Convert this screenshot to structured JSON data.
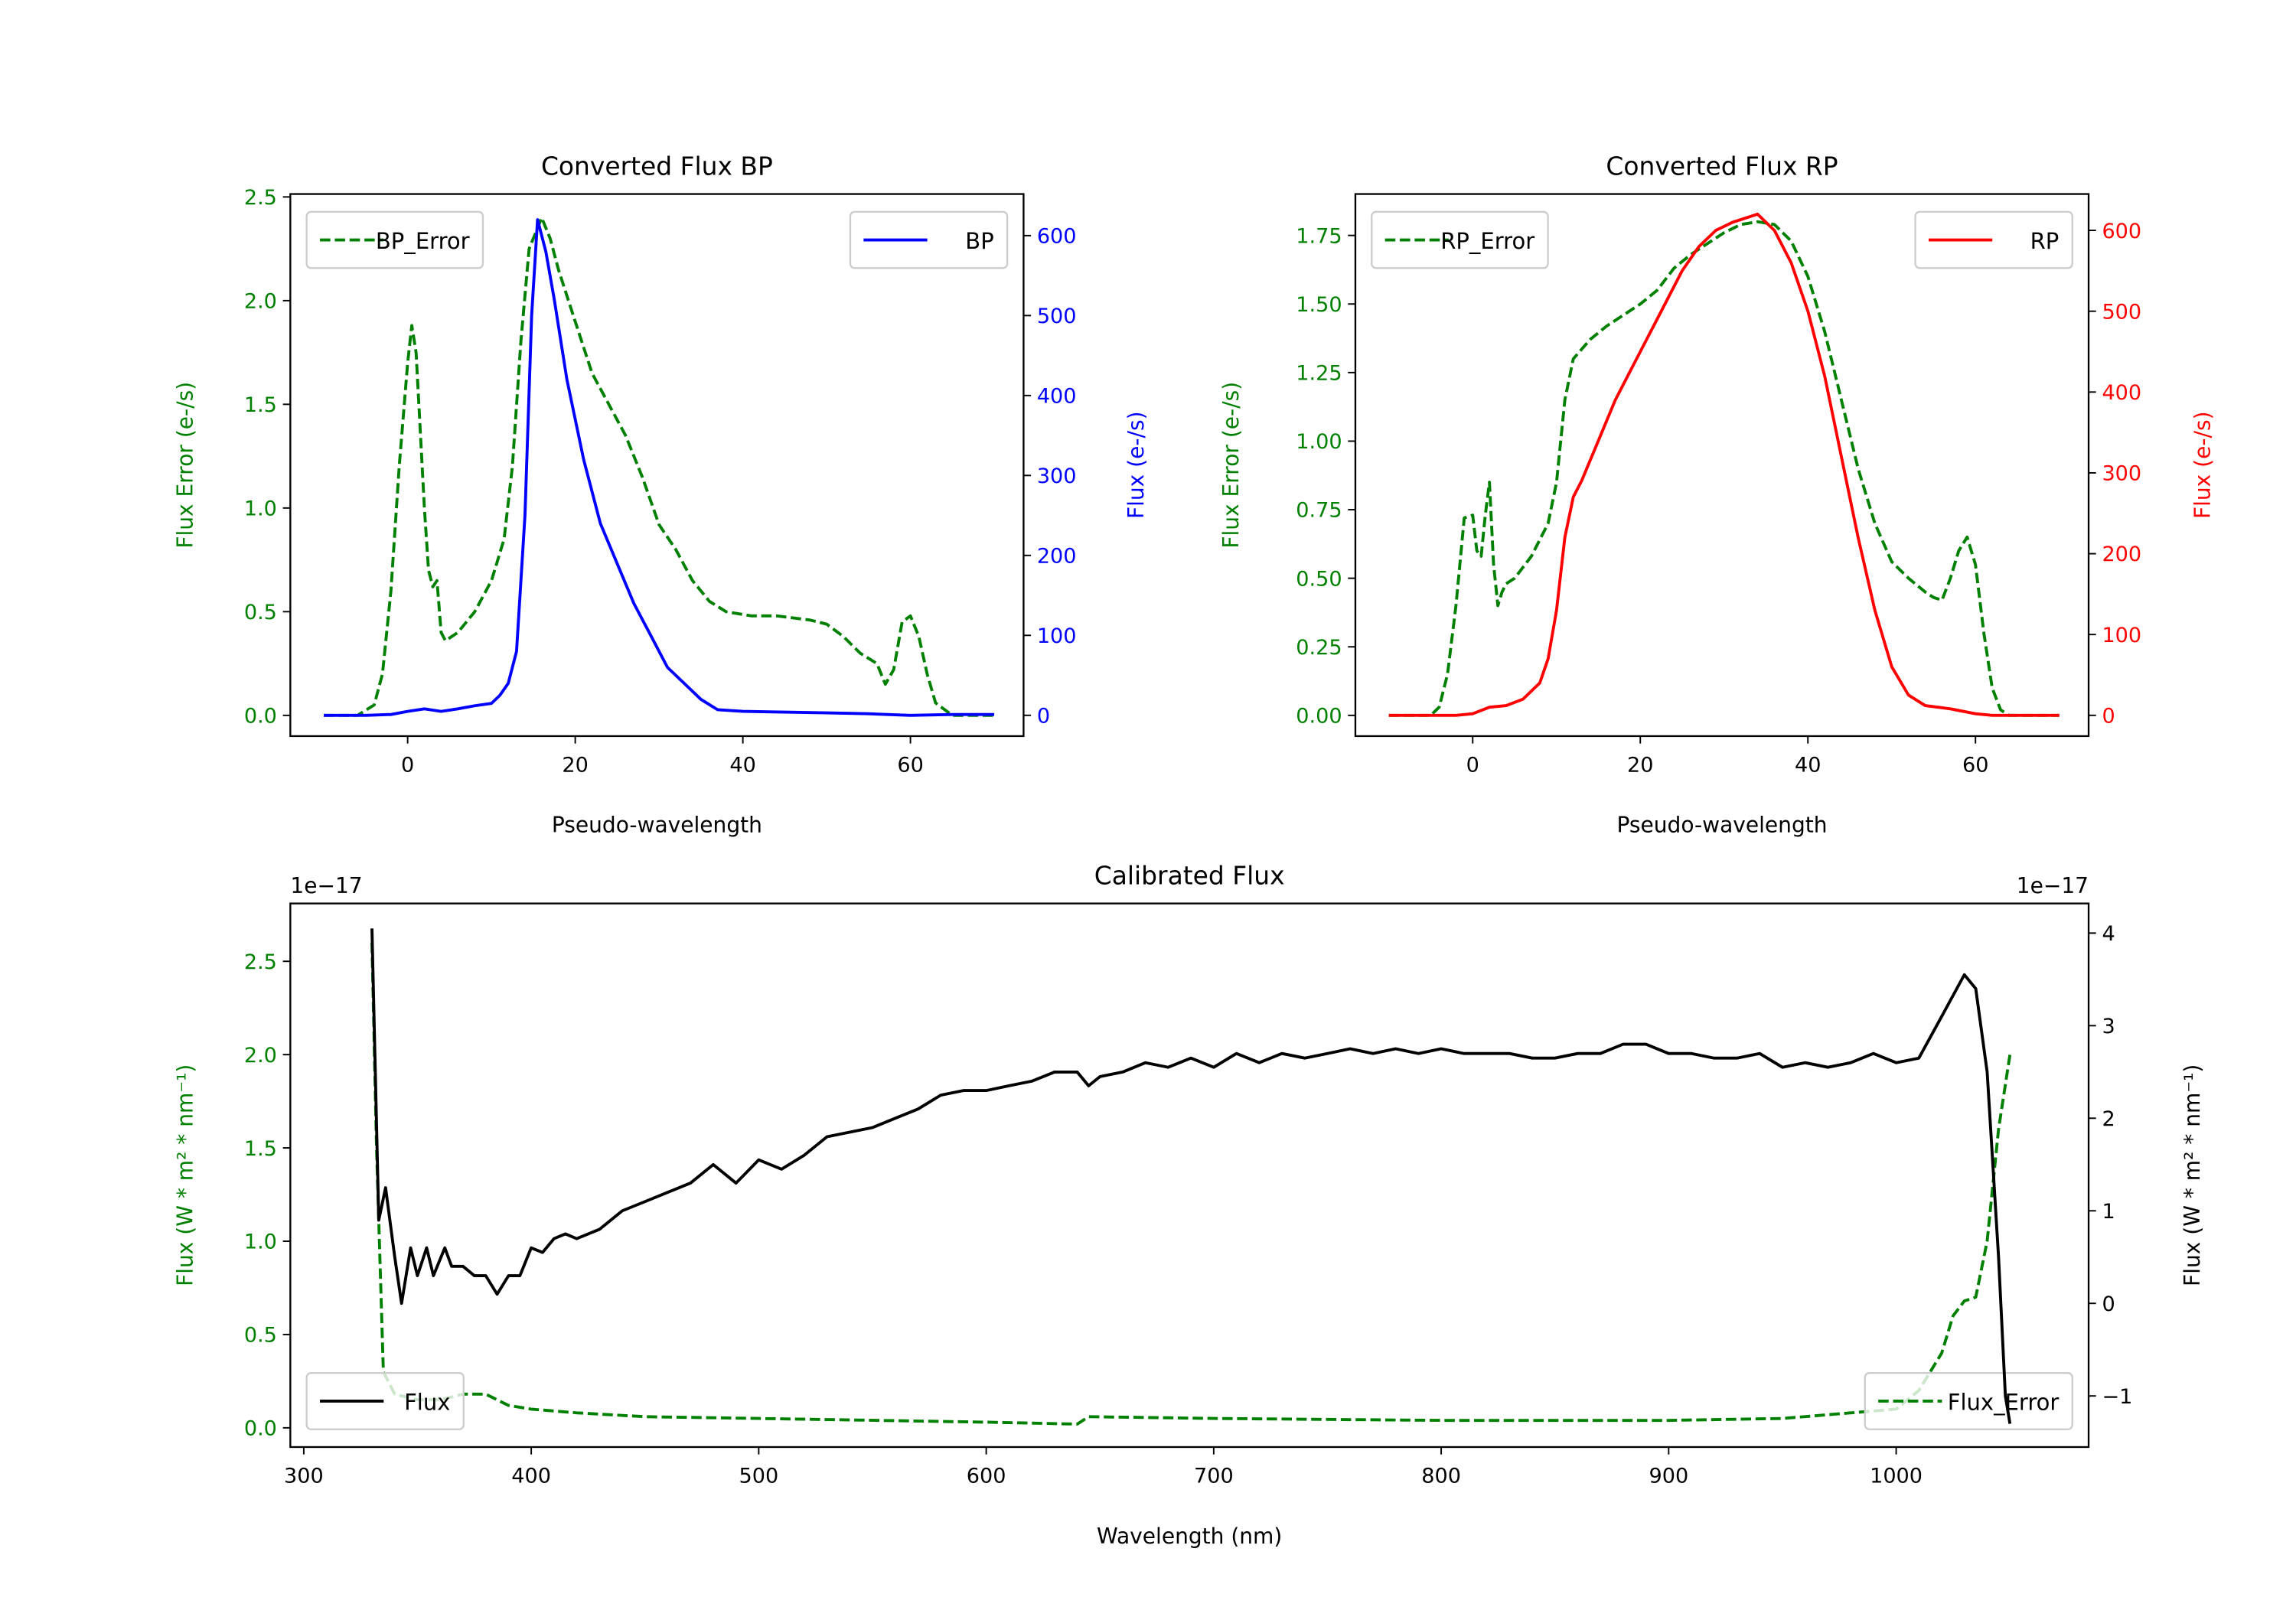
{
  "colors": {
    "green": "#008000",
    "blue": "#0000ff",
    "red": "#ff0000",
    "black": "#000000"
  },
  "chart_data": [
    {
      "type": "line",
      "title": "Converted Flux BP",
      "xlabel": "Pseudo-wavelength",
      "ylabel_left": "Flux Error (e-/s)",
      "ylabel_right": "Flux (e-/s)",
      "xlim": [
        -14,
        73.5
      ],
      "ylim_left": [
        -0.1,
        2.514
      ],
      "ylim_right": [
        -26,
        652
      ],
      "xticks": [
        "0",
        "20",
        "40",
        "60"
      ],
      "xtick_values": [
        0,
        20,
        40,
        60
      ],
      "yticks_left": [
        "0.0",
        "0.5",
        "1.0",
        "1.5",
        "2.0",
        "2.5"
      ],
      "ytick_left_values": [
        0,
        0.5,
        1,
        1.5,
        2,
        2.5
      ],
      "yticks_right": [
        "0",
        "100",
        "200",
        "300",
        "400",
        "500",
        "600"
      ],
      "ytick_right_values": [
        0,
        100,
        200,
        300,
        400,
        500,
        600
      ],
      "series": [
        {
          "name": "BP_Error",
          "axis": "left",
          "style": "dashed",
          "color": "#008000",
          "legend": "top-left",
          "x": [
            -10,
            -6,
            -4,
            -3,
            -2,
            -1,
            0,
            0.5,
            1,
            2,
            2.5,
            3,
            3.5,
            4,
            4.5,
            6,
            8,
            10,
            11.5,
            12.5,
            13.5,
            14.5,
            16,
            17,
            18,
            20,
            22,
            24,
            26,
            28,
            30,
            32,
            34,
            36,
            38,
            41,
            44,
            48,
            50,
            52,
            54,
            56,
            57,
            58,
            59,
            60,
            61,
            62,
            63,
            65,
            70
          ],
          "y": [
            0,
            0,
            0.05,
            0.2,
            0.6,
            1.2,
            1.7,
            1.88,
            1.75,
            1.0,
            0.7,
            0.62,
            0.65,
            0.4,
            0.36,
            0.4,
            0.5,
            0.65,
            0.85,
            1.2,
            1.8,
            2.25,
            2.4,
            2.3,
            2.15,
            1.9,
            1.65,
            1.5,
            1.35,
            1.15,
            0.92,
            0.8,
            0.65,
            0.55,
            0.5,
            0.48,
            0.48,
            0.46,
            0.44,
            0.38,
            0.3,
            0.25,
            0.15,
            0.22,
            0.45,
            0.48,
            0.38,
            0.2,
            0.06,
            0,
            0
          ]
        },
        {
          "name": "BP",
          "axis": "right",
          "style": "solid",
          "color": "#0000ff",
          "legend": "top-right",
          "x": [
            -10,
            -5,
            -2,
            0,
            2,
            4,
            6,
            8,
            10,
            11,
            12,
            13,
            14,
            14.8,
            15.5,
            16.5,
            17.5,
            19,
            21,
            23,
            25,
            27,
            29,
            31,
            33,
            35,
            37,
            40,
            45,
            50,
            55,
            60,
            65,
            70
          ],
          "y": [
            0,
            0,
            1,
            5,
            8,
            5,
            8,
            12,
            15,
            25,
            40,
            80,
            250,
            500,
            620,
            580,
            520,
            420,
            320,
            240,
            190,
            140,
            100,
            60,
            40,
            20,
            7,
            5,
            4,
            3,
            2,
            0,
            1,
            1
          ]
        }
      ]
    },
    {
      "type": "line",
      "title": "Converted Flux RP",
      "xlabel": "Pseudo-wavelength",
      "ylabel_left": "Flux Error (e-/s)",
      "ylabel_right": "Flux (e-/s)",
      "xlim": [
        -14,
        73.5
      ],
      "ylim_left": [
        -0.0756,
        1.901
      ],
      "ylim_right": [
        -25.7,
        645
      ],
      "xticks": [
        "0",
        "20",
        "40",
        "60"
      ],
      "xtick_values": [
        0,
        20,
        40,
        60
      ],
      "yticks_left": [
        "0.00",
        "0.25",
        "0.50",
        "0.75",
        "1.00",
        "1.25",
        "1.50",
        "1.75"
      ],
      "ytick_left_values": [
        0,
        0.25,
        0.5,
        0.75,
        1,
        1.25,
        1.5,
        1.75
      ],
      "yticks_right": [
        "0",
        "100",
        "200",
        "300",
        "400",
        "500",
        "600"
      ],
      "ytick_right_values": [
        0,
        100,
        200,
        300,
        400,
        500,
        600
      ],
      "series": [
        {
          "name": "RP_Error",
          "axis": "left",
          "style": "dashed",
          "color": "#008000",
          "legend": "top-left",
          "x": [
            -10,
            -5,
            -4,
            -3,
            -2,
            -1,
            0,
            0.5,
            1,
            1.5,
            2,
            2.5,
            3,
            3.5,
            4,
            5,
            7,
            9,
            10,
            11,
            12,
            14,
            16,
            18,
            20,
            22,
            24,
            26,
            28,
            30,
            32,
            34,
            36,
            38,
            40,
            42,
            44,
            46,
            48,
            50,
            52,
            54,
            55,
            56,
            57,
            58,
            59,
            60,
            61,
            62,
            63,
            64,
            70
          ],
          "y": [
            0,
            0,
            0.03,
            0.15,
            0.4,
            0.72,
            0.73,
            0.6,
            0.58,
            0.73,
            0.85,
            0.55,
            0.4,
            0.45,
            0.48,
            0.5,
            0.58,
            0.7,
            0.85,
            1.15,
            1.3,
            1.37,
            1.42,
            1.46,
            1.5,
            1.55,
            1.63,
            1.68,
            1.72,
            1.76,
            1.79,
            1.8,
            1.79,
            1.73,
            1.6,
            1.4,
            1.15,
            0.9,
            0.7,
            0.56,
            0.5,
            0.45,
            0.43,
            0.42,
            0.5,
            0.6,
            0.65,
            0.55,
            0.3,
            0.1,
            0.02,
            0,
            0
          ]
        },
        {
          "name": "RP",
          "axis": "right",
          "style": "solid",
          "color": "#ff0000",
          "legend": "top-right",
          "x": [
            -10,
            -2,
            0,
            2,
            4,
            6,
            8,
            9,
            10,
            11,
            12,
            13,
            15,
            17,
            19,
            21,
            23,
            25,
            27,
            29,
            31,
            34,
            36,
            38,
            40,
            42,
            44,
            46,
            48,
            50,
            52,
            54,
            57,
            60,
            62,
            70
          ],
          "y": [
            0,
            0,
            2,
            10,
            12,
            20,
            40,
            70,
            130,
            220,
            270,
            290,
            340,
            390,
            430,
            470,
            510,
            550,
            580,
            600,
            610,
            620,
            600,
            560,
            500,
            420,
            320,
            220,
            130,
            60,
            25,
            12,
            8,
            2,
            0,
            0
          ]
        }
      ]
    },
    {
      "type": "line",
      "title": "Calibrated Flux",
      "xlabel": "Wavelength (nm)",
      "ylabel_left": "Flux (W * m² * nm⁻¹)",
      "ylabel_right": "Flux (W * m² * nm⁻¹)",
      "offset_left": "1e−17",
      "offset_right": "1e−17",
      "xlim": [
        294.1,
        1084.6
      ],
      "ylim_left": [
        -0.103,
        2.81
      ],
      "ylim_right": [
        -1.552,
        4.32
      ],
      "xticks": [
        "300",
        "400",
        "500",
        "600",
        "700",
        "800",
        "900",
        "1000"
      ],
      "xtick_values": [
        300,
        400,
        500,
        600,
        700,
        800,
        900,
        1000
      ],
      "yticks_left": [
        "0.0",
        "0.5",
        "1.0",
        "1.5",
        "2.0",
        "2.5"
      ],
      "ytick_left_values": [
        0,
        0.5,
        1,
        1.5,
        2,
        2.5
      ],
      "yticks_right": [
        "−1",
        "0",
        "1",
        "2",
        "3",
        "4"
      ],
      "ytick_right_values": [
        -1,
        0,
        1,
        2,
        3,
        4
      ],
      "series": [
        {
          "name": "Flux_Error",
          "axis": "left",
          "style": "dashed",
          "color": "#008000",
          "legend": "bottom-right",
          "x": [
            330,
            332,
            335,
            340,
            350,
            360,
            370,
            380,
            390,
            400,
            420,
            450,
            500,
            600,
            640,
            645,
            700,
            800,
            900,
            950,
            1000,
            1010,
            1020,
            1025,
            1030,
            1035,
            1040,
            1045,
            1050
          ],
          "y": [
            2.6,
            1.5,
            0.3,
            0.18,
            0.15,
            0.15,
            0.18,
            0.18,
            0.12,
            0.1,
            0.08,
            0.06,
            0.05,
            0.03,
            0.02,
            0.06,
            0.05,
            0.04,
            0.04,
            0.05,
            0.1,
            0.2,
            0.4,
            0.6,
            0.68,
            0.7,
            1.0,
            1.6,
            2.0
          ]
        },
        {
          "name": "Flux",
          "axis": "right",
          "style": "solid",
          "color": "#000000",
          "legend": "bottom-left",
          "x": [
            330,
            333,
            336,
            340,
            343,
            347,
            350,
            354,
            357,
            362,
            365,
            370,
            375,
            380,
            385,
            390,
            395,
            400,
            405,
            410,
            415,
            420,
            430,
            440,
            450,
            460,
            470,
            480,
            490,
            500,
            510,
            520,
            530,
            540,
            550,
            560,
            570,
            580,
            590,
            600,
            610,
            620,
            630,
            640,
            645,
            650,
            660,
            670,
            680,
            690,
            700,
            710,
            720,
            730,
            740,
            750,
            760,
            770,
            780,
            790,
            800,
            810,
            820,
            830,
            840,
            850,
            860,
            870,
            880,
            890,
            900,
            910,
            920,
            930,
            940,
            950,
            960,
            970,
            980,
            990,
            1000,
            1010,
            1020,
            1030,
            1035,
            1040,
            1045,
            1048,
            1050
          ],
          "y": [
            4.05,
            0.9,
            1.25,
            0.5,
            0.0,
            0.6,
            0.3,
            0.6,
            0.3,
            0.6,
            0.4,
            0.4,
            0.3,
            0.3,
            0.1,
            0.3,
            0.3,
            0.6,
            0.55,
            0.7,
            0.75,
            0.7,
            0.8,
            1.0,
            1.1,
            1.2,
            1.3,
            1.5,
            1.3,
            1.55,
            1.45,
            1.6,
            1.8,
            1.85,
            1.9,
            2.0,
            2.1,
            2.25,
            2.3,
            2.3,
            2.35,
            2.4,
            2.5,
            2.5,
            2.35,
            2.45,
            2.5,
            2.6,
            2.55,
            2.65,
            2.55,
            2.7,
            2.6,
            2.7,
            2.65,
            2.7,
            2.75,
            2.7,
            2.75,
            2.7,
            2.75,
            2.7,
            2.7,
            2.7,
            2.65,
            2.65,
            2.7,
            2.7,
            2.8,
            2.8,
            2.7,
            2.7,
            2.65,
            2.65,
            2.7,
            2.55,
            2.6,
            2.55,
            2.6,
            2.7,
            2.6,
            2.65,
            3.1,
            3.55,
            3.4,
            2.5,
            0.5,
            -1.0,
            -1.3
          ]
        }
      ]
    }
  ]
}
